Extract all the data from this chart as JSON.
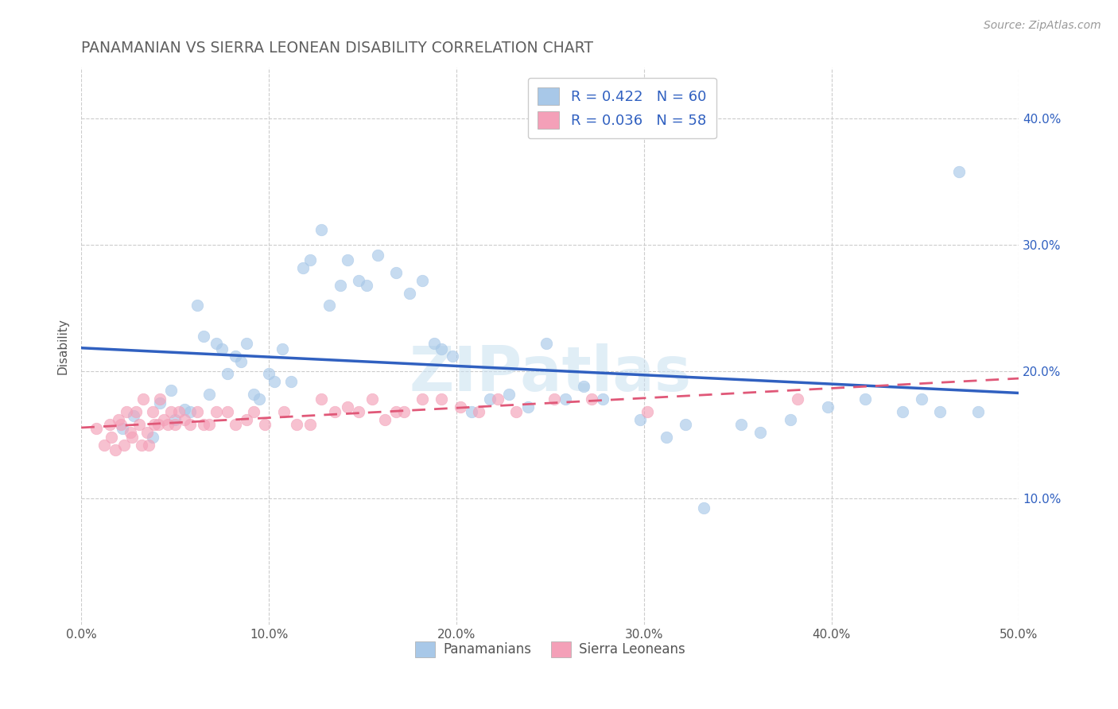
{
  "title": "PANAMANIAN VS SIERRA LEONEAN DISABILITY CORRELATION CHART",
  "source_text": "Source: ZipAtlas.com",
  "ylabel": "Disability",
  "xlim": [
    0.0,
    0.5
  ],
  "ylim": [
    0.0,
    0.44
  ],
  "xtick_labels": [
    "0.0%",
    "10.0%",
    "20.0%",
    "30.0%",
    "40.0%",
    "50.0%"
  ],
  "xtick_vals": [
    0.0,
    0.1,
    0.2,
    0.3,
    0.4,
    0.5
  ],
  "ytick_labels": [
    "10.0%",
    "20.0%",
    "30.0%",
    "40.0%"
  ],
  "ytick_vals": [
    0.1,
    0.2,
    0.3,
    0.4
  ],
  "legend_labels": [
    "Panamanians",
    "Sierra Leoneans"
  ],
  "R_blue": 0.422,
  "N_blue": 60,
  "R_pink": 0.036,
  "N_pink": 58,
  "blue_color": "#a8c8e8",
  "pink_color": "#f4a0b8",
  "blue_line_color": "#3060c0",
  "pink_line_color": "#e05878",
  "grid_color": "#cccccc",
  "title_color": "#606060",
  "background_color": "#ffffff",
  "blue_scatter_x": [
    0.022,
    0.028,
    0.038,
    0.042,
    0.048,
    0.05,
    0.055,
    0.058,
    0.062,
    0.065,
    0.068,
    0.072,
    0.075,
    0.078,
    0.082,
    0.085,
    0.088,
    0.092,
    0.095,
    0.1,
    0.103,
    0.107,
    0.112,
    0.118,
    0.122,
    0.128,
    0.132,
    0.138,
    0.142,
    0.148,
    0.152,
    0.158,
    0.168,
    0.175,
    0.182,
    0.188,
    0.192,
    0.198,
    0.208,
    0.218,
    0.228,
    0.238,
    0.248,
    0.258,
    0.268,
    0.278,
    0.298,
    0.312,
    0.322,
    0.332,
    0.352,
    0.362,
    0.378,
    0.398,
    0.418,
    0.438,
    0.448,
    0.458,
    0.468,
    0.478
  ],
  "blue_scatter_y": [
    0.155,
    0.165,
    0.148,
    0.175,
    0.185,
    0.162,
    0.17,
    0.168,
    0.252,
    0.228,
    0.182,
    0.222,
    0.218,
    0.198,
    0.212,
    0.208,
    0.222,
    0.182,
    0.178,
    0.198,
    0.192,
    0.218,
    0.192,
    0.282,
    0.288,
    0.312,
    0.252,
    0.268,
    0.288,
    0.272,
    0.268,
    0.292,
    0.278,
    0.262,
    0.272,
    0.222,
    0.218,
    0.212,
    0.168,
    0.178,
    0.182,
    0.172,
    0.222,
    0.178,
    0.188,
    0.178,
    0.162,
    0.148,
    0.158,
    0.092,
    0.158,
    0.152,
    0.162,
    0.172,
    0.178,
    0.168,
    0.178,
    0.168,
    0.358,
    0.168
  ],
  "pink_scatter_x": [
    0.008,
    0.012,
    0.015,
    0.016,
    0.018,
    0.02,
    0.021,
    0.023,
    0.024,
    0.026,
    0.027,
    0.029,
    0.031,
    0.032,
    0.033,
    0.035,
    0.036,
    0.038,
    0.039,
    0.041,
    0.042,
    0.044,
    0.046,
    0.048,
    0.05,
    0.052,
    0.055,
    0.058,
    0.062,
    0.065,
    0.068,
    0.072,
    0.078,
    0.082,
    0.088,
    0.092,
    0.098,
    0.108,
    0.115,
    0.122,
    0.128,
    0.135,
    0.142,
    0.148,
    0.155,
    0.162,
    0.168,
    0.172,
    0.182,
    0.192,
    0.202,
    0.212,
    0.222,
    0.232,
    0.252,
    0.272,
    0.302,
    0.382
  ],
  "pink_scatter_y": [
    0.155,
    0.142,
    0.158,
    0.148,
    0.138,
    0.162,
    0.158,
    0.142,
    0.168,
    0.152,
    0.148,
    0.168,
    0.158,
    0.142,
    0.178,
    0.152,
    0.142,
    0.168,
    0.158,
    0.158,
    0.178,
    0.162,
    0.158,
    0.168,
    0.158,
    0.168,
    0.162,
    0.158,
    0.168,
    0.158,
    0.158,
    0.168,
    0.168,
    0.158,
    0.162,
    0.168,
    0.158,
    0.168,
    0.158,
    0.158,
    0.178,
    0.168,
    0.172,
    0.168,
    0.178,
    0.162,
    0.168,
    0.168,
    0.178,
    0.178,
    0.172,
    0.168,
    0.178,
    0.168,
    0.178,
    0.178,
    0.168,
    0.178
  ]
}
